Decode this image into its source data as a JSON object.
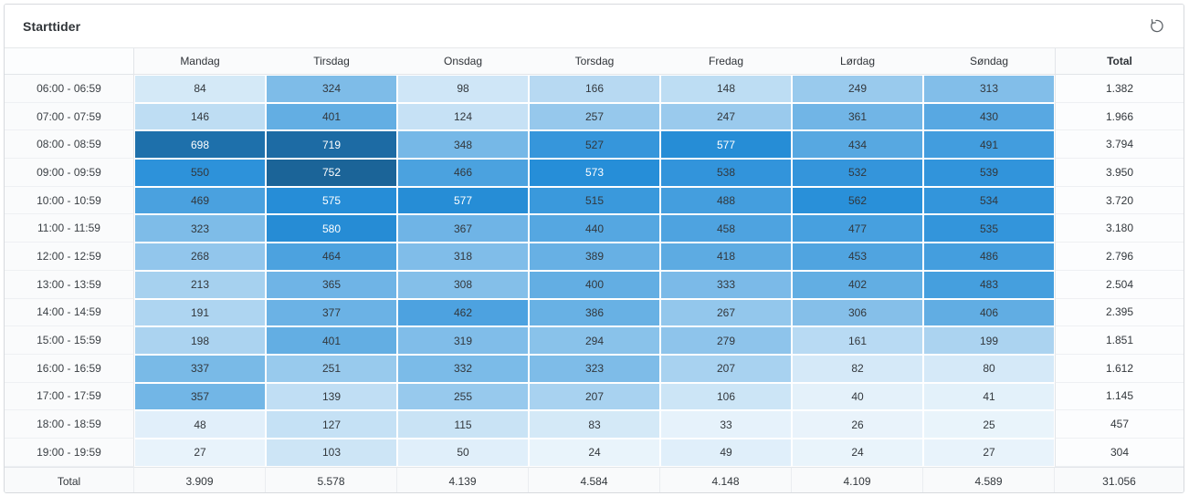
{
  "header": {
    "title": "Starttider",
    "reset_icon": "reset-icon"
  },
  "colors": {
    "card_border": "#d7dade",
    "grid_line": "#e2e5e9",
    "header_bg": "#fafbfc",
    "cell_text_dark": "#32373c",
    "cell_text_light": "#ffffff",
    "icon_gray": "#5d6267"
  },
  "chart_data": {
    "type": "heatmap",
    "title": "Starttider",
    "columns": [
      "Mandag",
      "Tirsdag",
      "Onsdag",
      "Torsdag",
      "Fredag",
      "Lørdag",
      "Søndag"
    ],
    "rows": [
      "06:00 - 06:59",
      "07:00 - 07:59",
      "08:00 - 08:59",
      "09:00 - 09:59",
      "10:00 - 10:59",
      "11:00 - 11:59",
      "12:00 - 12:59",
      "13:00 - 13:59",
      "14:00 - 14:59",
      "15:00 - 15:59",
      "16:00 - 16:59",
      "17:00 - 17:59",
      "18:00 - 18:59",
      "19:00 - 19:59"
    ],
    "values": [
      [
        84,
        324,
        98,
        166,
        148,
        249,
        313
      ],
      [
        146,
        401,
        124,
        257,
        247,
        361,
        430
      ],
      [
        698,
        719,
        348,
        527,
        577,
        434,
        491
      ],
      [
        550,
        752,
        466,
        573,
        538,
        532,
        539
      ],
      [
        469,
        575,
        577,
        515,
        488,
        562,
        534
      ],
      [
        323,
        580,
        367,
        440,
        458,
        477,
        535
      ],
      [
        268,
        464,
        318,
        389,
        418,
        453,
        486
      ],
      [
        213,
        365,
        308,
        400,
        333,
        402,
        483
      ],
      [
        191,
        377,
        462,
        386,
        267,
        306,
        406
      ],
      [
        198,
        401,
        319,
        294,
        279,
        161,
        199
      ],
      [
        337,
        251,
        332,
        323,
        207,
        82,
        80
      ],
      [
        357,
        139,
        255,
        207,
        106,
        40,
        41
      ],
      [
        48,
        127,
        115,
        83,
        33,
        26,
        25
      ],
      [
        27,
        103,
        50,
        24,
        49,
        24,
        27
      ]
    ],
    "total_label": "Total",
    "row_totals": [
      "1.382",
      "1.966",
      "3.794",
      "3.950",
      "3.720",
      "3.180",
      "2.796",
      "2.504",
      "2.395",
      "1.851",
      "1.612",
      "1.145",
      "457",
      "304"
    ],
    "column_totals": [
      "3.909",
      "5.578",
      "4.139",
      "4.584",
      "4.148",
      "4.109",
      "4.589"
    ],
    "grand_total": "31.056",
    "color_scale": {
      "mode": "hsl",
      "hue": 205,
      "saturation": 70,
      "lightness_range": [
        95,
        35
      ],
      "domain": [
        24,
        752
      ],
      "white_text_below_lightness": 50.5
    },
    "legend": "none",
    "grid": "white gaps between heat cells"
  }
}
